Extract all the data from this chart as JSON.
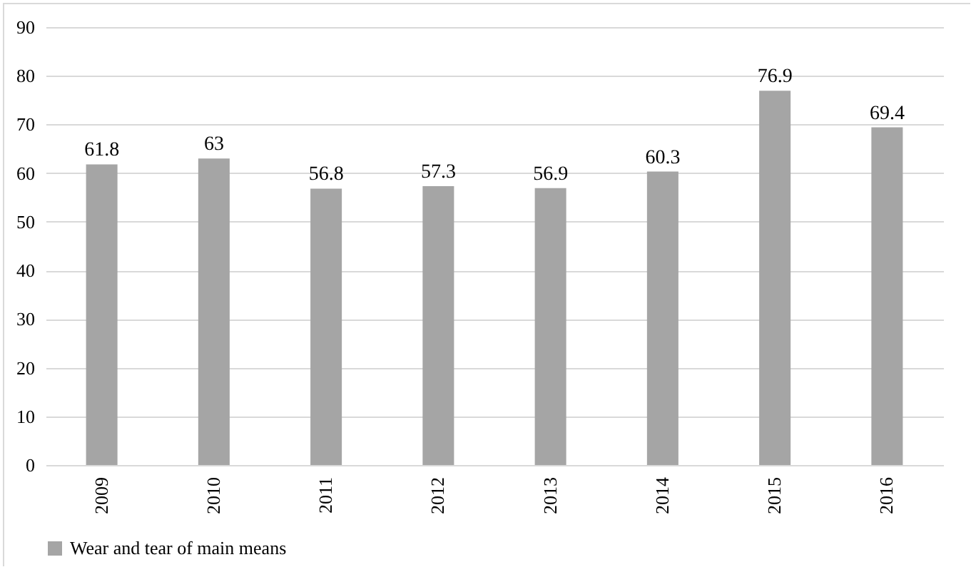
{
  "chart_data": {
    "type": "bar",
    "categories": [
      "2009",
      "2010",
      "2011",
      "2012",
      "2013",
      "2014",
      "2015",
      "2016"
    ],
    "series": [
      {
        "name": "Wear and tear of main means",
        "color": "#a5a5a5",
        "values": [
          61.8,
          63,
          56.8,
          57.3,
          56.9,
          60.3,
          76.9,
          69.4
        ]
      }
    ],
    "ylim": [
      0,
      90
    ],
    "yticks": [
      0,
      10,
      20,
      30,
      40,
      50,
      60,
      70,
      80,
      90
    ],
    "grid": "y",
    "legend": "bottom",
    "data_labels": true
  }
}
